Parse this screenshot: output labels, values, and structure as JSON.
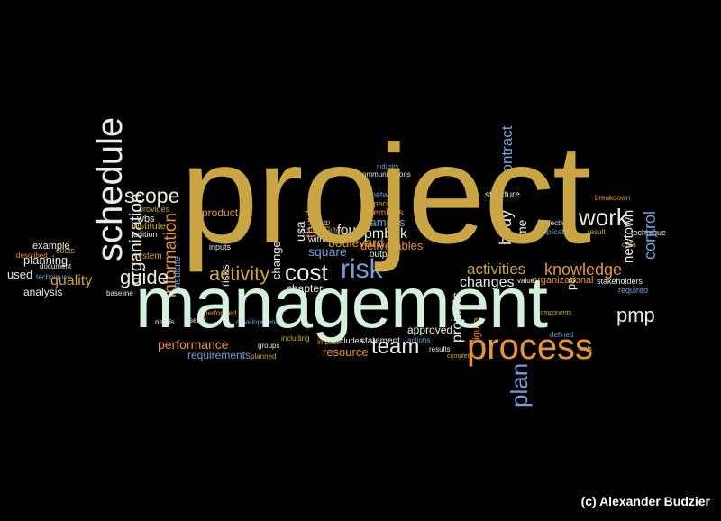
{
  "palette": {
    "background": "#000000",
    "gold": "#c9a545",
    "mint": "#d5f0dc",
    "orange": "#e8923a",
    "blue": "#6fa0d8",
    "pale": "#e9eedf"
  },
  "credit": "(c) Alexander Budzier",
  "words": {
    "project": "project",
    "management": "management",
    "process": "process",
    "schedule": "schedule",
    "work": "work",
    "risk": "risk",
    "cost": "cost",
    "activity": "activity",
    "scope": "scope",
    "guide": "guide",
    "plan": "plan",
    "team": "team",
    "performance": "performance",
    "knowledge": "knowledge",
    "activities": "activities",
    "changes": "changes",
    "information": "information",
    "pmp": "pmp",
    "control": "control",
    "contract": "contract",
    "projects": "projects",
    "requirements": "requirements",
    "resource": "resource",
    "quality": "quality",
    "planning": "planning",
    "analysis": "analysis",
    "used": "used",
    "organization": "organization",
    "product": "product",
    "pmbok": "pmbok",
    "deliverables": "deliverables",
    "campus": "campus",
    "boulevard": "boulevard",
    "square": "square",
    "chapter": "chapter",
    "approved": "approved",
    "organizational": "organizational",
    "statement": "statement",
    "includes": "includes",
    "institute": "institute",
    "example": "example",
    "four": "four",
    "newtown": "newtown",
    "body": "body",
    "time": "time",
    "structure": "structure",
    "members": "members",
    "outputs": "outputs",
    "baseline": "baseline",
    "stakeholders": "stakeholders",
    "technique": "technique",
    "system": "system",
    "inputs": "inputs",
    "edition": "edition",
    "network": "network",
    "specific": "specific",
    "objectives": "objectives",
    "within": "within",
    "third": "third",
    "usa": "usa",
    "value": "value",
    "figure": "figure",
    "required": "required",
    "seller": "seller",
    "performed": "performed",
    "development": "development",
    "wbs": "wbs",
    "provides": "provides",
    "costs": "costs",
    "document": "document",
    "techniques": "techniques",
    "groups": "groups",
    "planned": "planned",
    "results": "results",
    "change": "change",
    "risks": "risks",
    "result": "result",
    "tools": "tools",
    "application": "application",
    "needs": "needs",
    "impact": "impact",
    "actions": "actions",
    "including": "including",
    "data": "data",
    "often": "often",
    "breakdown": "breakdown",
    "described": "described",
    "defined": "defined",
    "communications": "communications",
    "components": "components",
    "complete": "complete",
    "one": "one",
    "section": "section",
    "industry": "industry",
    "pa": "pa"
  }
}
